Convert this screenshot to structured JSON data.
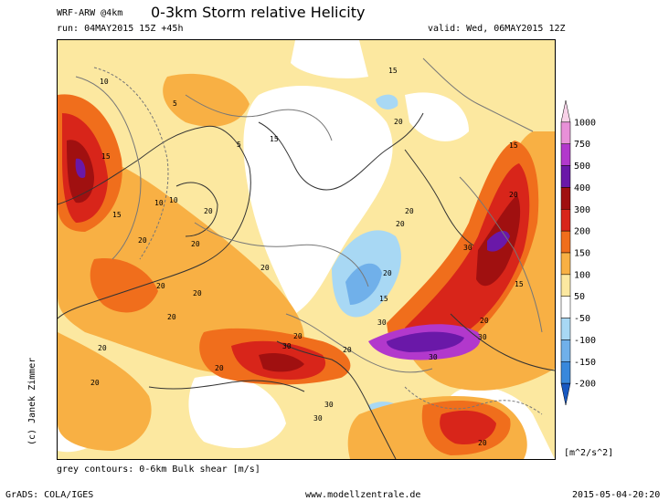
{
  "header": {
    "model": "WRF-ARW @4km",
    "title": "0-3km Storm relative Helicity",
    "run": "run: 04MAY2015 15Z +45h",
    "valid": "valid: Wed, 06MAY2015 12Z"
  },
  "map": {
    "contour_labels": [
      "10",
      "5",
      "15",
      "15",
      "10",
      "5",
      "15",
      "20",
      "15",
      "10",
      "20",
      "20",
      "20",
      "20",
      "20",
      "20",
      "20",
      "20",
      "20",
      "20",
      "15",
      "30",
      "30",
      "30",
      "30",
      "20",
      "20",
      "30",
      "30",
      "20",
      "15",
      "20",
      "20",
      "30",
      "20",
      "20",
      "15",
      "20"
    ]
  },
  "legend": {
    "levels": [
      "1000",
      "750",
      "500",
      "400",
      "300",
      "200",
      "150",
      "100",
      "50",
      "-50",
      "-100",
      "-150",
      "-200"
    ],
    "colors": [
      "#f8d2e8",
      "#e890d8",
      "#b238cc",
      "#6a18a8",
      "#a01010",
      "#d8251a",
      "#f06e1c",
      "#f8b044",
      "#fce8a0",
      "#ffffff",
      "#a8d8f4",
      "#70b0ea",
      "#3888dc",
      "#1858c0"
    ],
    "units": "[m^2/s^2]"
  },
  "footer": {
    "note": "grey contours: 0-6km Bulk shear [m/s]",
    "copyright": "(c) Janek Zimmer",
    "grads": "GrADS: COLA/IGES",
    "website": "www.modellzentrale.de",
    "timestamp": "2015-05-04-20:20"
  }
}
